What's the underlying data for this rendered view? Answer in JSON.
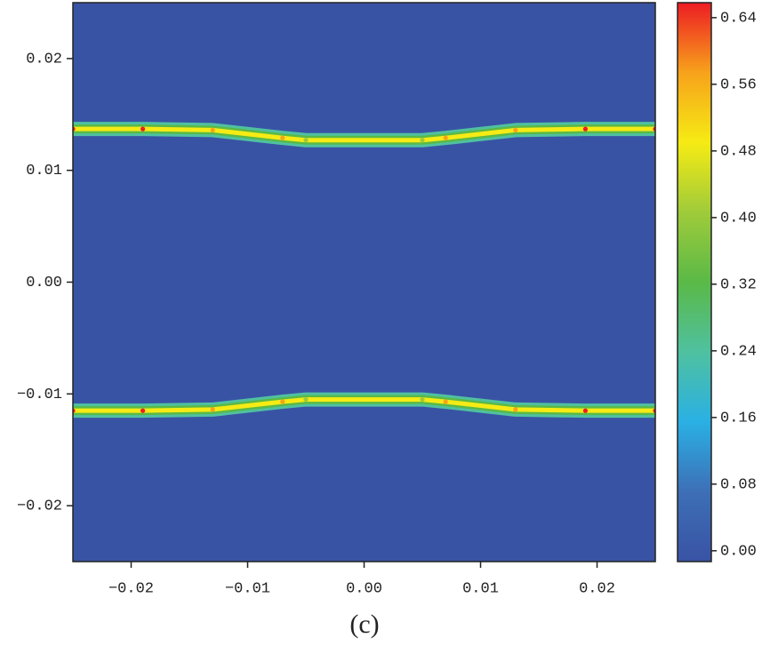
{
  "chart_data": {
    "type": "contour",
    "caption": "(c)",
    "xlim": [
      -0.025,
      0.025
    ],
    "ylim": [
      -0.025,
      0.025
    ],
    "xticks": [
      {
        "value": -0.02,
        "label": "−0.02"
      },
      {
        "value": -0.01,
        "label": "−0.01"
      },
      {
        "value": 0,
        "label": "0.00"
      },
      0.01,
      0.02
    ],
    "yticks": [
      {
        "value": -0.02,
        "label": "−0.02"
      },
      {
        "value": -0.01,
        "label": "−0.01"
      },
      {
        "value": 0,
        "label": "0.00"
      },
      0.01,
      0.02
    ],
    "background_color": "#3953a4",
    "colorscale": [
      "#3953a4",
      "#3d6fb6",
      "#2ab0e4",
      "#4fc1a0",
      "#5ab947",
      "#9fcb3a",
      "#f6eb14",
      "#f7a21b",
      "#ed1c24"
    ],
    "clim": [
      -0.013,
      0.658
    ],
    "cticks": [
      {
        "value": 0,
        "label": "0.00"
      },
      0.08,
      0.16,
      0.24,
      0.32,
      {
        "value": 0.4,
        "label": "0.40"
      },
      0.48,
      0.56,
      0.64
    ],
    "series": [
      {
        "x": [
          -0.025,
          -0.019,
          -0.013,
          -0.007,
          -0.005,
          0.005,
          0.007,
          0.013,
          0.019,
          0.025
        ],
        "y": [
          0.0137,
          0.0137,
          0.0136,
          0.0129,
          0.0127,
          0.0127,
          0.0129,
          0.0136,
          0.0137,
          0.0137
        ],
        "values": [
          0.64,
          0.64,
          0.6,
          0.56,
          0.4,
          0.4,
          0.56,
          0.6,
          0.64,
          0.64
        ]
      },
      {
        "x": [
          -0.025,
          -0.019,
          -0.013,
          -0.007,
          -0.005,
          0.005,
          0.007,
          0.013,
          0.019,
          0.025
        ],
        "y": [
          -0.0115,
          -0.0115,
          -0.0114,
          -0.0107,
          -0.0105,
          -0.0105,
          -0.0107,
          -0.0114,
          -0.0115,
          -0.0115
        ],
        "values": [
          0.64,
          0.64,
          0.6,
          0.56,
          0.4,
          0.4,
          0.56,
          0.6,
          0.64,
          0.64
        ]
      }
    ]
  }
}
